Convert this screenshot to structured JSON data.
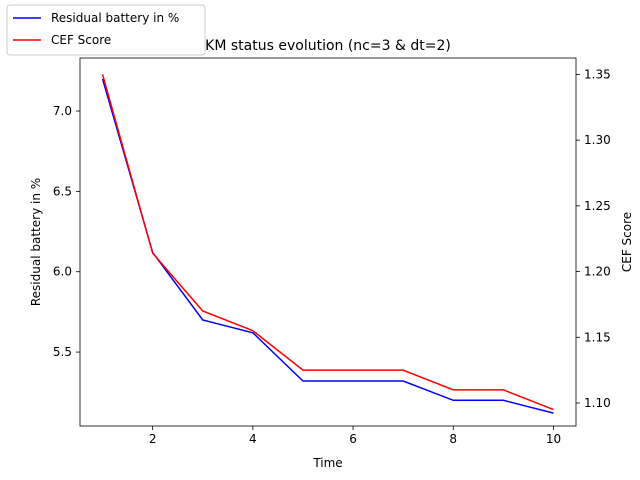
{
  "chart_data": {
    "type": "line",
    "title": "KM status evolution (nc=3 & dt=2)",
    "xlabel": "Time",
    "ylabel_left": "Residual battery in %",
    "ylabel_right": "CEF Score",
    "xlim": [
      0.55,
      10.45
    ],
    "ylim_left": [
      5.04,
      7.33
    ],
    "ylim_right": [
      1.0825,
      1.3625
    ],
    "x_ticks": [
      2,
      4,
      6,
      8,
      10
    ],
    "y_left_ticks": [
      5.5,
      6.0,
      6.5,
      7.0
    ],
    "y_right_ticks": [
      1.1,
      1.15,
      1.2,
      1.25,
      1.3,
      1.35
    ],
    "legend_position": "top-left (outside plot)",
    "grid": false,
    "x": [
      1,
      2,
      3,
      4,
      5,
      6,
      7,
      8,
      9,
      10
    ],
    "series": [
      {
        "name": "Residual battery in %",
        "axis": "left",
        "color": "#0000ff",
        "values": [
          7.2,
          6.12,
          5.7,
          5.62,
          5.32,
          5.32,
          5.32,
          5.2,
          5.2,
          5.12
        ]
      },
      {
        "name": "CEF Score",
        "axis": "right",
        "color": "#ff0000",
        "values": [
          1.35,
          1.214,
          1.17,
          1.155,
          1.125,
          1.125,
          1.125,
          1.11,
          1.11,
          1.095
        ]
      }
    ]
  }
}
